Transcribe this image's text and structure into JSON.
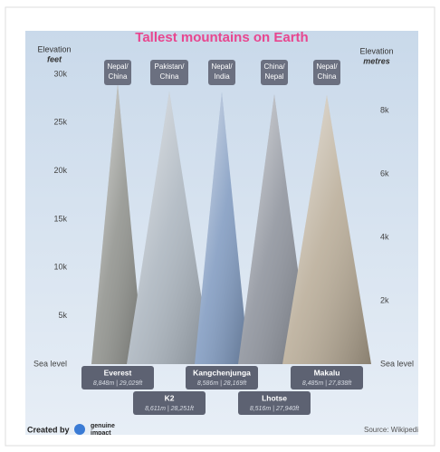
{
  "chart_data": {
    "type": "triangle",
    "title": "Tallest mountains on Earth",
    "y_axis_title": [
      "Elevation",
      "feet"
    ],
    "y2_axis_title": [
      "Elevation",
      "metres"
    ],
    "categories": [
      "Everest",
      "K2",
      "Kangchenjunga",
      "Lhotse",
      "Makalu"
    ],
    "regions": [
      [
        "Nepal/",
        "China"
      ],
      [
        "Pakistan/",
        "China"
      ],
      [
        "Nepal/",
        "India"
      ],
      [
        "China/",
        "Nepal"
      ],
      [
        "Nepal/",
        "China"
      ]
    ],
    "values": [
      29029,
      28251,
      28169,
      27940,
      27838
    ],
    "value_labels": [
      "8,848m | 29,029ft",
      "8,611m | 28,251ft",
      "8,586m | 28,169ft",
      "8,516m | 27,940ft",
      "8,485m | 27,838ft"
    ],
    "colors": [
      "#8d8f8a",
      "#a9b3bd",
      "#7d98bf",
      "#8a8f99",
      "#b7aa95"
    ],
    "ylim": [
      0,
      30000
    ],
    "yticks": [
      {
        "value": 0,
        "label": "Sea level"
      },
      {
        "value": 5000,
        "label": "5k"
      },
      {
        "value": 10000,
        "label": "10k"
      },
      {
        "value": 15000,
        "label": "15k"
      },
      {
        "value": 20000,
        "label": "20k"
      },
      {
        "value": 25000,
        "label": "25k"
      },
      {
        "value": 30000,
        "label": "30k"
      }
    ],
    "y2lim": [
      0,
      9144
    ],
    "y2ticks": [
      {
        "value": 0,
        "label": "Sea level"
      },
      {
        "value": 2000,
        "label": "2k"
      },
      {
        "value": 4000,
        "label": "4k"
      },
      {
        "value": 6000,
        "label": "6k"
      },
      {
        "value": 8000,
        "label": "8k"
      }
    ],
    "credit": [
      "Created by",
      "genuine",
      "impact"
    ],
    "source": "Source: Wikipedia"
  }
}
